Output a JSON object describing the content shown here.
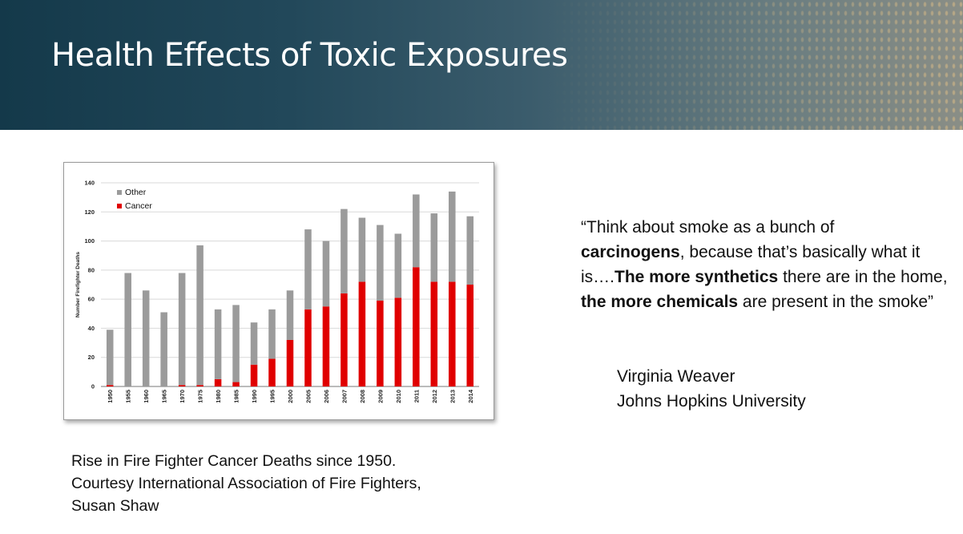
{
  "slide": {
    "title": "Health Effects of Toxic Exposures"
  },
  "caption": {
    "line1": "Rise in Fire Fighter Cancer Deaths since 1950.",
    "line2": "Courtesy International Association of Fire Fighters,",
    "line3": "Susan Shaw"
  },
  "quote": {
    "p1": "“Think about smoke as a bunch of",
    "b1": "carcinogens",
    "p2": ", because that’s basically what it is….",
    "b2": "The more synthetics",
    "p3": " there are in the home, ",
    "b3": "the more chemicals",
    "p4": " are present in the smoke”"
  },
  "attribution": {
    "name": "Virginia Weaver",
    "affiliation": "Johns Hopkins University"
  },
  "colors": {
    "other": "#9b9b9b",
    "cancer": "#e00000",
    "banner_dark": "#14394a"
  },
  "chart_data": {
    "type": "bar",
    "stacked": true,
    "title": "",
    "xlabel": "",
    "ylabel": "Number Firefighter Deaths",
    "ylim": [
      0,
      140
    ],
    "yticks": [
      0,
      20,
      40,
      60,
      80,
      100,
      120,
      140
    ],
    "grid": true,
    "legend_position": "top-left",
    "categories": [
      "1950",
      "1955",
      "1960",
      "1965",
      "1970",
      "1975",
      "1980",
      "1985",
      "1990",
      "1995",
      "2000",
      "2005",
      "2006",
      "2007",
      "2008",
      "2009",
      "2010",
      "2011",
      "2012",
      "2013",
      "2014"
    ],
    "series": [
      {
        "name": "Cancer",
        "color": "#e00000",
        "values": [
          1,
          0,
          0,
          0,
          1,
          1,
          5,
          3,
          15,
          19,
          32,
          53,
          55,
          64,
          72,
          59,
          61,
          82,
          72,
          72,
          70
        ]
      },
      {
        "name": "Other",
        "color": "#9b9b9b",
        "values": [
          38,
          78,
          66,
          51,
          77,
          96,
          48,
          53,
          29,
          34,
          34,
          55,
          45,
          58,
          44,
          52,
          44,
          50,
          47,
          62,
          47
        ]
      }
    ]
  }
}
